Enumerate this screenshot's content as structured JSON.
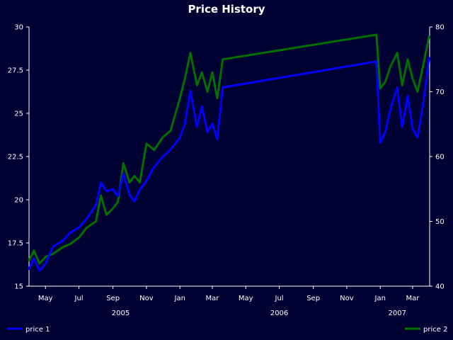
{
  "chart_data": {
    "type": "line",
    "title": "Price History",
    "colors": {
      "background": "#000033",
      "axis": "#ffffff",
      "text": "#ffffff"
    },
    "x_axis": {
      "month_ticks": [
        "May",
        "Jul",
        "Sep",
        "Nov",
        "Jan",
        "Mar",
        "May",
        "Jul",
        "Sep",
        "Nov",
        "Jan",
        "Mar"
      ],
      "month_tick_dates": [
        "2005-05-01",
        "2005-07-01",
        "2005-09-01",
        "2005-11-01",
        "2006-01-01",
        "2006-03-01",
        "2006-05-01",
        "2006-07-01",
        "2006-09-01",
        "2006-11-01",
        "2007-01-01",
        "2007-03-01"
      ],
      "year_labels": [
        "2005",
        "2006",
        "2007"
      ],
      "year_label_dates": [
        "2005-09-15",
        "2006-07-01",
        "2007-02-01"
      ],
      "range": [
        "2005-04-01",
        "2007-04-01"
      ]
    },
    "y_axis_left": {
      "range": [
        15,
        30
      ],
      "tick_values": [
        15,
        17.5,
        20,
        22.5,
        25,
        27.5,
        30
      ],
      "tick_labels": [
        "15",
        "17.5",
        "20",
        "22.5",
        "25",
        "27.5",
        "30"
      ]
    },
    "y_axis_right": {
      "range": [
        40,
        80
      ],
      "tick_values": [
        40,
        50,
        60,
        70,
        80
      ],
      "tick_labels": [
        "40",
        "50",
        "60",
        "70",
        "80"
      ]
    },
    "legend": [
      {
        "name": "price 1",
        "color": "#0000ff",
        "position": "bottom-left"
      },
      {
        "name": "price 2",
        "color": "#007000",
        "position": "bottom-right"
      }
    ],
    "series": [
      {
        "name": "price 1",
        "axis": "left",
        "color": "#0000ff",
        "x": [
          "2005-04-01",
          "2005-04-10",
          "2005-04-20",
          "2005-05-01",
          "2005-05-15",
          "2005-06-01",
          "2005-06-15",
          "2005-07-01",
          "2005-07-15",
          "2005-08-01",
          "2005-08-10",
          "2005-08-20",
          "2005-09-01",
          "2005-09-10",
          "2005-09-20",
          "2005-10-01",
          "2005-10-10",
          "2005-10-20",
          "2005-11-01",
          "2005-11-15",
          "2005-12-01",
          "2005-12-15",
          "2006-01-01",
          "2006-01-10",
          "2006-01-20",
          "2006-02-01",
          "2006-02-10",
          "2006-02-20",
          "2006-03-01",
          "2006-03-10",
          "2006-03-20",
          "2006-12-25",
          "2007-01-01",
          "2007-01-10",
          "2007-01-20",
          "2007-02-01",
          "2007-02-10",
          "2007-02-20",
          "2007-03-01",
          "2007-03-10",
          "2007-03-20",
          "2007-03-31"
        ],
        "y": [
          16.0,
          16.6,
          15.9,
          16.3,
          17.3,
          17.6,
          18.1,
          18.4,
          18.9,
          19.7,
          21.0,
          20.5,
          20.6,
          20.2,
          21.5,
          20.3,
          19.9,
          20.6,
          21.1,
          21.9,
          22.5,
          22.9,
          23.6,
          24.4,
          26.3,
          24.2,
          25.4,
          23.9,
          24.4,
          23.5,
          26.5,
          28.0,
          23.3,
          23.9,
          25.3,
          26.5,
          24.2,
          26.0,
          24.1,
          23.6,
          25.5,
          28.2
        ]
      },
      {
        "name": "price 2",
        "axis": "right",
        "color": "#007000",
        "x": [
          "2005-04-01",
          "2005-04-10",
          "2005-04-20",
          "2005-05-01",
          "2005-05-15",
          "2005-06-01",
          "2005-06-15",
          "2005-07-01",
          "2005-07-15",
          "2005-08-01",
          "2005-08-10",
          "2005-08-20",
          "2005-09-01",
          "2005-09-10",
          "2005-09-20",
          "2005-10-01",
          "2005-10-10",
          "2005-10-20",
          "2005-11-01",
          "2005-11-15",
          "2005-12-01",
          "2005-12-15",
          "2006-01-01",
          "2006-01-10",
          "2006-01-20",
          "2006-02-01",
          "2006-02-10",
          "2006-02-20",
          "2006-03-01",
          "2006-03-10",
          "2006-03-20",
          "2006-12-25",
          "2007-01-01",
          "2007-01-10",
          "2007-01-20",
          "2007-02-01",
          "2007-02-10",
          "2007-02-20",
          "2007-03-01",
          "2007-03-10",
          "2007-03-20",
          "2007-03-31"
        ],
        "y": [
          44,
          45.5,
          43.5,
          44.5,
          45,
          46,
          46.5,
          47.5,
          49,
          50,
          54,
          51,
          52,
          53,
          59,
          56,
          57,
          56,
          62,
          61,
          63,
          64,
          69,
          72,
          76,
          71,
          73,
          70,
          73,
          69,
          75,
          78.8,
          70.5,
          71.5,
          74,
          76,
          71,
          75,
          72,
          70,
          74,
          78.5
        ]
      }
    ]
  }
}
